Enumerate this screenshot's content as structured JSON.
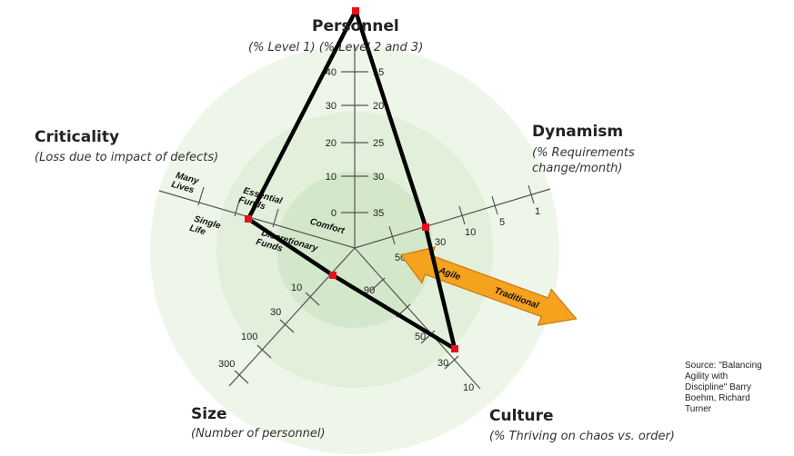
{
  "axes": {
    "personnel": {
      "title": "Personnel",
      "subtitle": "(% Level 1)   (% Level 2 and 3)",
      "ticks_left": [
        "40",
        "30",
        "20",
        "10",
        "0"
      ],
      "ticks_right": [
        "15",
        "20",
        "25",
        "30",
        "35"
      ]
    },
    "dynamism": {
      "title": "Dynamism",
      "subtitle_line1": "(% Requirements",
      "subtitle_line2": "change/month)",
      "ticks": [
        "30",
        "10",
        "5",
        "1"
      ]
    },
    "criticality": {
      "title": "Criticality",
      "subtitle": "(Loss due to impact of defects)",
      "ticks": [
        {
          "line1": "Many",
          "line2": "Lives"
        },
        {
          "line1": "Single",
          "line2": "Life"
        },
        {
          "line1": "Essential",
          "line2": "Funds"
        },
        {
          "line1": "Discretionary",
          "line2": "Funds"
        },
        {
          "line1": "Comfort"
        }
      ]
    },
    "size": {
      "title": "Size",
      "subtitle": "(Number of personnel)",
      "ticks": [
        "10",
        "30",
        "100",
        "300"
      ]
    },
    "culture": {
      "title": "Culture",
      "subtitle": "(% Thriving on chaos vs. order)",
      "ticks": [
        "50",
        "90",
        "50",
        "30",
        "10"
      ]
    }
  },
  "arrow": {
    "left_label": "Agile",
    "right_label": "Traditional",
    "color": "#f5a21f"
  },
  "profile": {
    "outline_color": "#000000",
    "point_color": "#e8101a"
  },
  "source": {
    "lines": [
      "Source: \"Balancing",
      "Agility with",
      "Discipline\" Barry",
      "Boehm, Richard",
      "Turner",
      ""
    ]
  }
}
